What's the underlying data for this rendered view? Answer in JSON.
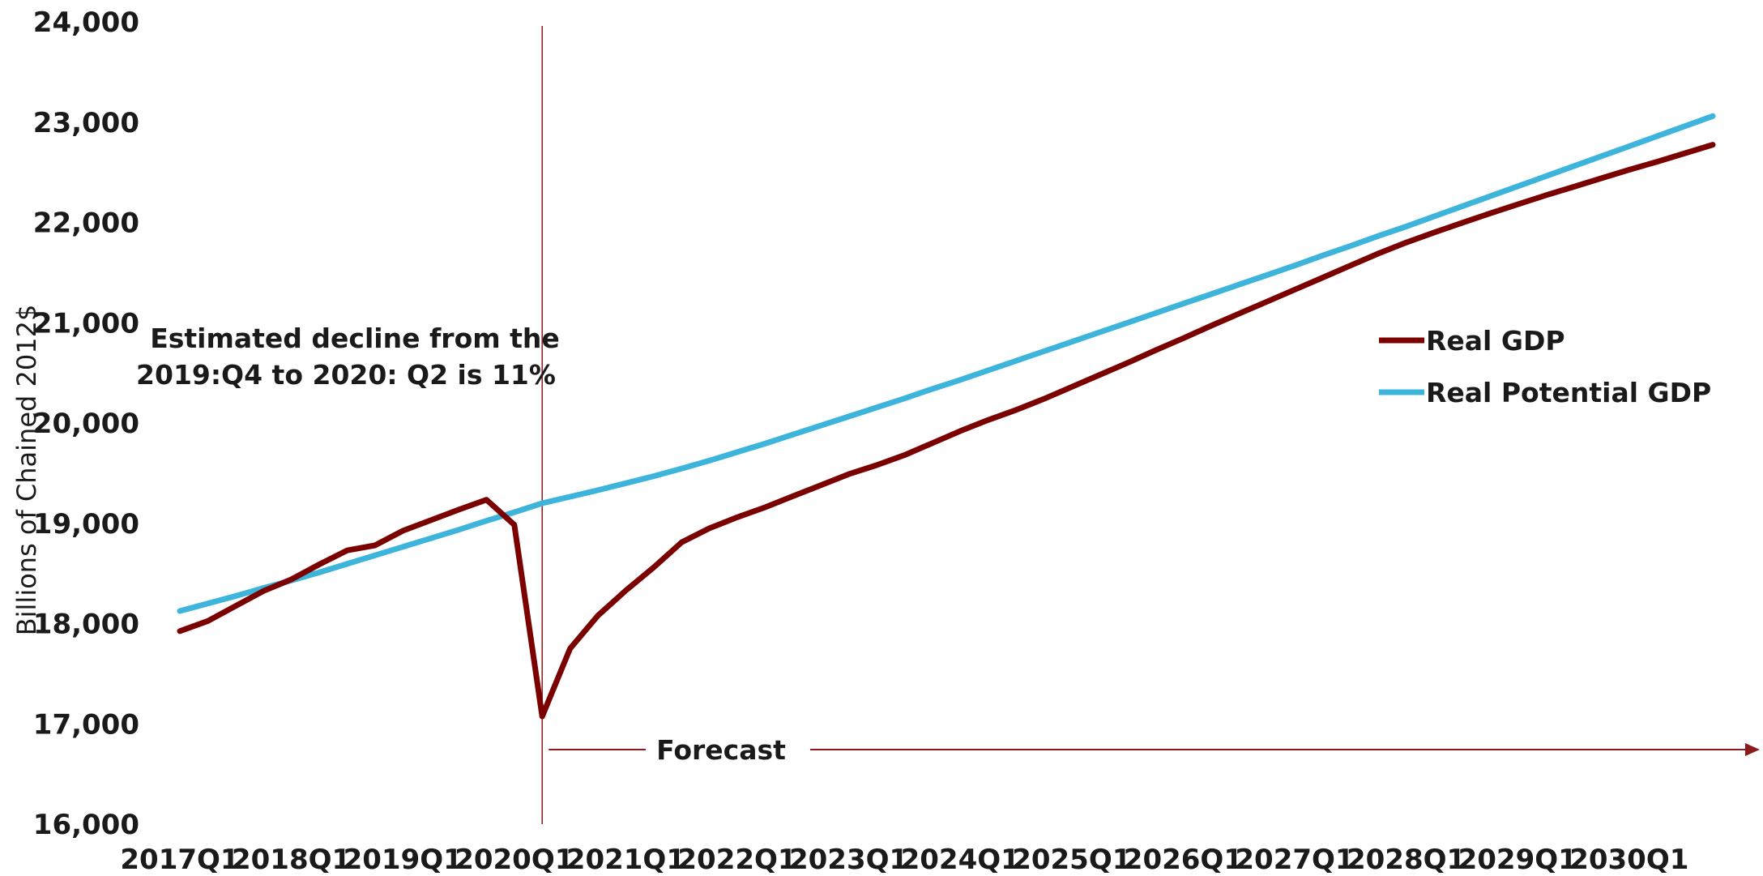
{
  "chart_data": {
    "type": "line",
    "ylabel": "Billions of Chained 2012$",
    "xlabel": "",
    "ylim": [
      16000,
      24000
    ],
    "yticks": [
      16000,
      17000,
      18000,
      19000,
      20000,
      21000,
      22000,
      23000,
      24000
    ],
    "ytick_labels": [
      "16,000",
      "17,000",
      "18,000",
      "19,000",
      "20,000",
      "21,000",
      "22,000",
      "23,000",
      "24,000"
    ],
    "xtick_labels": [
      "2017Q1",
      "2018Q1",
      "2019Q1",
      "2020Q1",
      "2021Q1",
      "2022Q1",
      "2023Q1",
      "2024Q1",
      "2025Q1",
      "2026Q1",
      "2027Q1",
      "2028Q1",
      "2029Q1",
      "2030Q1"
    ],
    "x_start": "2017Q1",
    "x_end": "2030Q4",
    "grid": false,
    "legend_position": "right",
    "series": [
      {
        "name": "Real GDP",
        "color": "#7b0000",
        "values": [
          17925,
          18025,
          18175,
          18325,
          18440,
          18590,
          18730,
          18780,
          18925,
          19030,
          19135,
          19235,
          18985,
          17075,
          17750,
          18080,
          18330,
          18560,
          18810,
          18950,
          19060,
          19160,
          19270,
          19380,
          19490,
          19580,
          19680,
          19800,
          19920,
          20030,
          20130,
          20240,
          20360,
          20480,
          20600,
          20725,
          20845,
          20970,
          21090,
          21210,
          21330,
          21450,
          21570,
          21690,
          21800,
          21900,
          21995,
          22090,
          22180,
          22270,
          22355,
          22440,
          22525,
          22605,
          22690,
          22775
        ]
      },
      {
        "name": "Real Potential GDP",
        "color": "#3cb4dc",
        "values": [
          18125,
          18200,
          18275,
          18355,
          18430,
          18510,
          18595,
          18680,
          18765,
          18850,
          18935,
          19025,
          19110,
          19200,
          19265,
          19330,
          19400,
          19470,
          19545,
          19625,
          19710,
          19795,
          19885,
          19975,
          20065,
          20155,
          20245,
          20340,
          20430,
          20525,
          20620,
          20715,
          20810,
          20905,
          21000,
          21095,
          21190,
          21285,
          21380,
          21475,
          21570,
          21670,
          21765,
          21865,
          21960,
          22060,
          22160,
          22260,
          22360,
          22460,
          22560,
          22660,
          22760,
          22860,
          22960,
          23060
        ]
      }
    ],
    "annotations": {
      "note_line1": "Estimated decline from the",
      "note_line2": "2019:Q4 to 2020: Q2 is 11%",
      "forecast_label": "Forecast",
      "forecast_start": "2020Q2"
    }
  }
}
